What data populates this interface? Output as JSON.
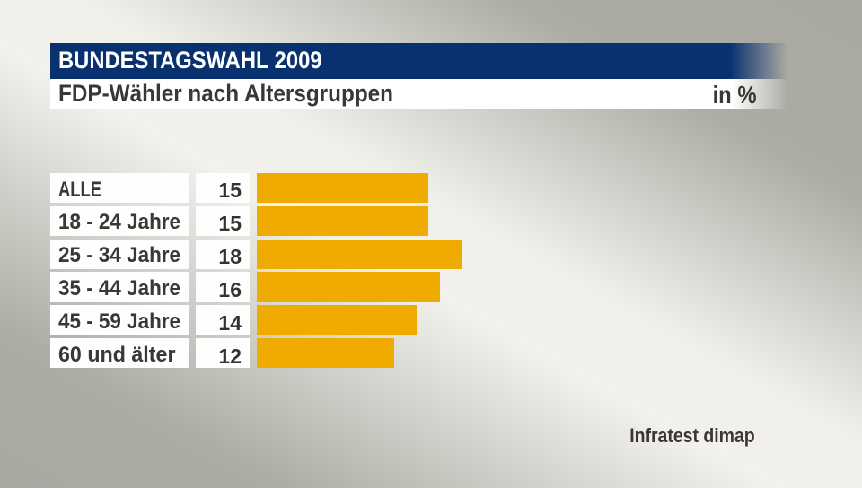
{
  "header": {
    "title": "BUNDESTAGSWAHL 2009",
    "subtitle": "FDP-Wähler nach Altersgruppen",
    "unit_label": "in %"
  },
  "source": "Infratest dimap",
  "colors": {
    "title_bar_navy": "#0a316f",
    "bar_orange": "#f0ab00",
    "text_dark": "#3a3734",
    "box_white": "#fefefe",
    "background_light": "#f1f0eb",
    "background_dark": "#a9a8a1"
  },
  "chart_data": {
    "type": "bar",
    "orientation": "horizontal",
    "title": "FDP-Wähler nach Altersgruppen",
    "unit": "in %",
    "categories": [
      "ALLE",
      "18 - 24 Jahre",
      "25 - 34 Jahre",
      "35 - 44 Jahre",
      "45 - 59 Jahre",
      "60 und älter"
    ],
    "values": [
      15,
      15,
      18,
      16,
      14,
      12
    ],
    "source": "Infratest dimap",
    "legend": false,
    "grid": false
  }
}
